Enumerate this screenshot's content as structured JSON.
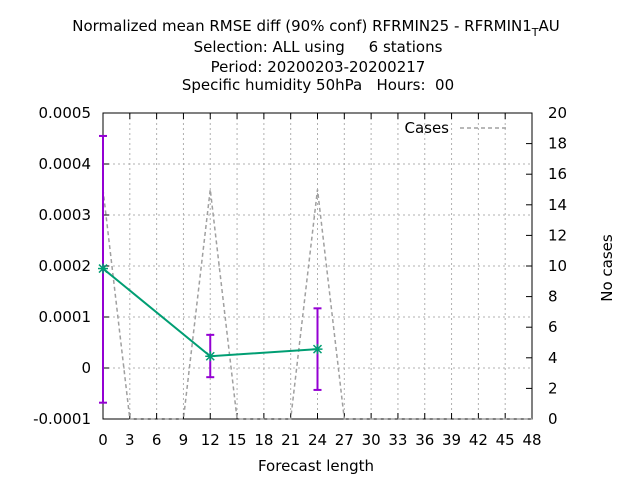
{
  "chart_data": {
    "type": "line",
    "title_lines": [
      "Normalized mean RMSE diff (90% conf) RFRMIN25 - RFRMIN1",
      "Selection: ALL using     6 stations",
      "Period: 20200203-20200217",
      "Specific humidity 50hPa   Hours:  00"
    ],
    "title_subscript": "T",
    "title_suffix": "AU",
    "xlabel": "Forecast length",
    "y2label": "No cases",
    "xlim": [
      0,
      48
    ],
    "ylim": [
      -0.0001,
      0.0005
    ],
    "y2lim": [
      0,
      20
    ],
    "xticks": [
      "0",
      "3",
      "6",
      "9",
      "12",
      "15",
      "18",
      "21",
      "24",
      "27",
      "30",
      "33",
      "36",
      "39",
      "42",
      "45",
      "48"
    ],
    "yticks": [
      "-0.0001",
      "0",
      "0.0001",
      "0.0002",
      "0.0003",
      "0.0004",
      "0.0005"
    ],
    "y2ticks": [
      "0",
      "2",
      "4",
      "6",
      "8",
      "10",
      "12",
      "14",
      "16",
      "18",
      "20"
    ],
    "grid": true,
    "legend_position": "top-right",
    "series": [
      {
        "name": "",
        "color": "#009e73",
        "x": [
          0,
          12,
          24
        ],
        "y": [
          0.000195,
          2.3e-05,
          3.7e-05
        ],
        "err_low": [
          -6.8e-05,
          -1.8e-05,
          -4.3e-05
        ],
        "err_high": [
          0.000455,
          6.5e-05,
          0.000117
        ],
        "err_color": "#9400d3"
      },
      {
        "name": "Cases",
        "color": "#a0a0a0",
        "axis": "y2",
        "x": [
          0,
          3,
          6,
          9,
          12,
          15,
          18,
          21,
          24,
          27,
          30,
          33,
          36,
          39,
          42,
          45,
          48
        ],
        "y": [
          15,
          0,
          0,
          0,
          15,
          0,
          0,
          0,
          15,
          0,
          0,
          0,
          0,
          0,
          0,
          0,
          0
        ]
      }
    ]
  }
}
